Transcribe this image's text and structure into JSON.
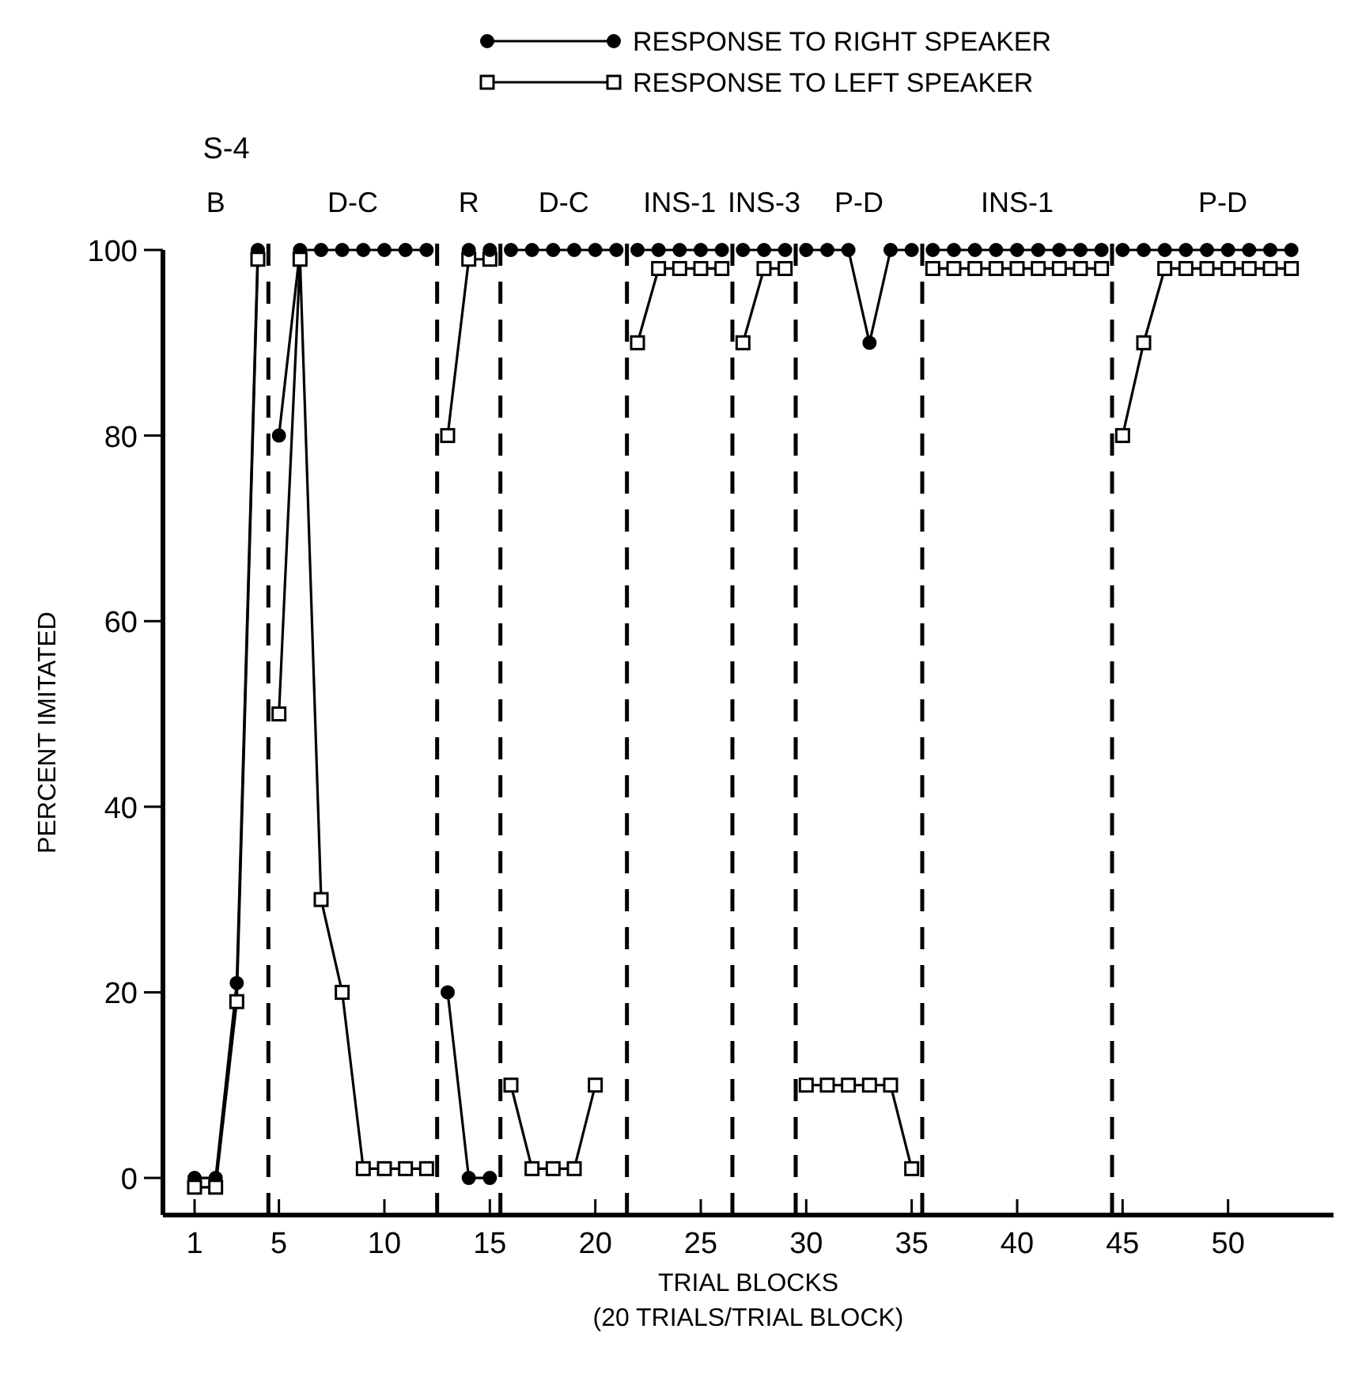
{
  "chart_data": {
    "type": "line",
    "title": "S-4",
    "xlabel": "TRIAL BLOCKS\n(20 TRIALS/TRIAL BLOCK)",
    "ylabel": "PERCENT IMITATED",
    "xlim": [
      -0.5,
      55
    ],
    "xticks": [
      1,
      5,
      10,
      15,
      20,
      25,
      30,
      35,
      40,
      45,
      50
    ],
    "ylim": [
      -4,
      100
    ],
    "yticks": [
      0,
      20,
      40,
      60,
      80,
      100
    ],
    "grid": false,
    "legend": "top right",
    "line_style": "solid",
    "series": [
      {
        "name": "RESPONSE TO RIGHT SPEAKER",
        "color": "#000000",
        "marker": "circle",
        "x": [
          1,
          2,
          3,
          4,
          5,
          6,
          7,
          8,
          9,
          10,
          11,
          12,
          13,
          14,
          15,
          16,
          17,
          18,
          19,
          20,
          21,
          22,
          23,
          24,
          25,
          26,
          27,
          28,
          29,
          30,
          31,
          32,
          33,
          34,
          35,
          36,
          37,
          38,
          39,
          40,
          41,
          42,
          43,
          44,
          45,
          46,
          47,
          48,
          49,
          50,
          51,
          52,
          53
        ],
        "values": [
          0,
          0,
          21,
          100,
          80,
          100,
          100,
          100,
          100,
          100,
          100,
          100,
          20,
          0,
          0,
          100,
          100,
          100,
          100,
          100,
          100,
          100,
          100,
          100,
          100,
          100,
          100,
          100,
          100,
          100,
          100,
          100,
          90,
          100,
          100,
          100,
          100,
          100,
          100,
          100,
          100,
          100,
          100,
          100,
          100,
          100,
          100,
          100,
          100,
          100,
          100,
          100,
          100
        ]
      },
      {
        "name": "RESPONSE TO LEFT SPEAKER",
        "color": "#000000",
        "marker": "square",
        "x": [
          1,
          2,
          3,
          4,
          5,
          6,
          7,
          8,
          9,
          10,
          11,
          12,
          13,
          14,
          15,
          16,
          17,
          18,
          19,
          20,
          22,
          23,
          24,
          25,
          26,
          27,
          28,
          29,
          30,
          31,
          32,
          33,
          34,
          35,
          36,
          37,
          38,
          39,
          40,
          41,
          42,
          43,
          44,
          45,
          46,
          47,
          48,
          49,
          50,
          51,
          52,
          53
        ],
        "values": [
          -1,
          -1,
          19,
          99,
          50,
          99,
          30,
          20,
          1,
          1,
          1,
          1,
          80,
          99,
          99,
          10,
          1,
          1,
          1,
          10,
          90,
          98,
          98,
          98,
          98,
          90,
          98,
          98,
          10,
          10,
          10,
          10,
          10,
          1,
          98,
          98,
          98,
          98,
          98,
          98,
          98,
          98,
          98,
          80,
          90,
          98,
          98,
          98,
          98,
          98,
          98,
          98
        ]
      },
      {
        "type": "scatter",
        "color": "#000000",
        "marker": "circle",
        "x": [
          14,
          15
        ],
        "values": [
          100,
          100
        ]
      }
    ],
    "ref_lines": [
      {
        "axis": "x",
        "value": 4.5,
        "line_style": "dashed"
      },
      {
        "axis": "x",
        "value": 12.5,
        "line_style": "dashed"
      },
      {
        "axis": "x",
        "value": 15.5,
        "line_style": "dashed"
      },
      {
        "axis": "x",
        "value": 21.5,
        "line_style": "dashed"
      },
      {
        "axis": "x",
        "value": 26.5,
        "line_style": "dashed"
      },
      {
        "axis": "x",
        "value": 29.5,
        "line_style": "dashed"
      },
      {
        "axis": "x",
        "value": 35.5,
        "line_style": "dashed"
      },
      {
        "axis": "x",
        "value": 44.5,
        "line_style": "dashed"
      }
    ],
    "annotations": [
      "B",
      "D-C",
      "R",
      "D-C",
      "INS-1",
      "INS-3",
      "P-D",
      "INS-1",
      "P-D"
    ]
  }
}
